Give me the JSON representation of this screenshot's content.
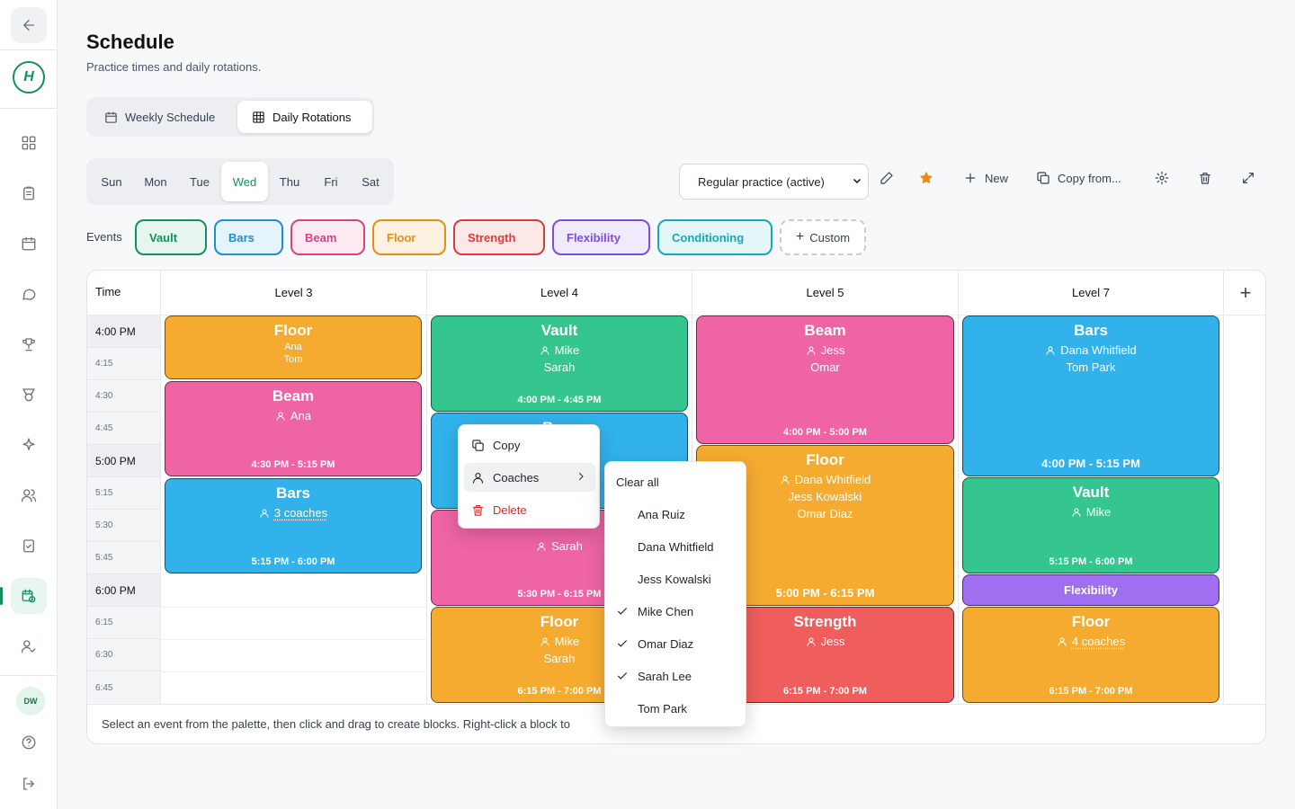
{
  "page": {
    "title": "Schedule",
    "subtitle": "Practice times and daily rotations."
  },
  "sidebar": {
    "avatar_initials": "DW",
    "logo_text": "H"
  },
  "view_tabs": [
    {
      "label": "Weekly Schedule",
      "icon": "calendar-icon",
      "active": false
    },
    {
      "label": "Daily Rotations",
      "icon": "grid-icon",
      "active": true
    }
  ],
  "days": [
    "Sun",
    "Mon",
    "Tue",
    "Wed",
    "Thu",
    "Fri",
    "Sat"
  ],
  "selected_day": "Wed",
  "toolbar": {
    "preset": "Regular practice (active)",
    "new_label": "New",
    "copy_label": "Copy from..."
  },
  "events": {
    "label": "Events",
    "palette": [
      {
        "label": "Vault",
        "color": "#12915e"
      },
      {
        "label": "Bars",
        "color": "#1e8fd1"
      },
      {
        "label": "Beam",
        "color": "#d9447f"
      },
      {
        "label": "Floor",
        "color": "#e58f15"
      },
      {
        "label": "Strength",
        "color": "#dc3b3b"
      },
      {
        "label": "Flexibility",
        "color": "#7c4ee0"
      },
      {
        "label": "Conditioning",
        "color": "#19a8b8"
      }
    ],
    "custom_label": "Custom"
  },
  "grid": {
    "time_header": "Time",
    "levels": [
      "Level 3",
      "Level 4",
      "Level 5",
      "Level 7"
    ],
    "times": [
      "4:00 PM",
      "4:15",
      "4:30",
      "4:45",
      "5:00 PM",
      "5:15",
      "5:30",
      "5:45",
      "6:00 PM",
      "6:15",
      "6:30",
      "6:45"
    ],
    "blocks": [
      {
        "level": "Level 3",
        "event": "Floor",
        "coaches": [
          "Ana",
          "Tom"
        ],
        "time": ""
      },
      {
        "level": "Level 3",
        "event": "Beam",
        "coaches": [
          "Ana"
        ],
        "time": "4:30 PM - 5:15 PM"
      },
      {
        "level": "Level 3",
        "event": "Bars",
        "coaches_summary": "3 coaches",
        "time": "5:15 PM - 6:00 PM"
      },
      {
        "level": "Level 4",
        "event": "Vault",
        "coaches": [
          "Mike",
          "Sarah"
        ],
        "time": "4:00 PM - 4:45 PM"
      },
      {
        "level": "Level 4",
        "event": "Bars",
        "coaches": [],
        "time": ""
      },
      {
        "level": "Level 4",
        "event": "Beam",
        "coaches": [
          "Sarah"
        ],
        "time": "5:30 PM - 6:15 PM"
      },
      {
        "level": "Level 4",
        "event": "Floor",
        "coaches": [
          "Mike",
          "Sarah"
        ],
        "time": "6:15 PM - 7:00 PM"
      },
      {
        "level": "Level 5",
        "event": "Beam",
        "coaches": [
          "Jess",
          "Omar"
        ],
        "time": "4:00 PM - 5:00 PM"
      },
      {
        "level": "Level 5",
        "event": "Floor",
        "coaches": [
          "Dana Whitfield",
          "Jess Kowalski",
          "Omar Diaz"
        ],
        "time": "5:00 PM - 6:15 PM"
      },
      {
        "level": "Level 5",
        "event": "Strength",
        "coaches": [
          "Jess"
        ],
        "time": "6:15 PM - 7:00 PM"
      },
      {
        "level": "Level 7",
        "event": "Bars",
        "coaches": [
          "Dana Whitfield",
          "Tom Park"
        ],
        "time": "4:00 PM - 5:15 PM"
      },
      {
        "level": "Level 7",
        "event": "Vault",
        "coaches": [
          "Mike"
        ],
        "time": "5:15 PM - 6:00 PM"
      },
      {
        "level": "Level 7",
        "event": "Flexibility",
        "coaches": [],
        "time": ""
      },
      {
        "level": "Level 7",
        "event": "Floor",
        "coaches_summary": "4 coaches",
        "time": "6:15 PM - 7:00 PM"
      }
    ],
    "footer": "Select an event from the palette, then click and drag to create blocks. Right-click a block to"
  },
  "context_menu": {
    "items": [
      "Copy",
      "Coaches",
      "Delete"
    ],
    "coaches_submenu": {
      "clear_label": "Clear all",
      "options": [
        {
          "name": "Ana Ruiz",
          "checked": false
        },
        {
          "name": "Dana Whitfield",
          "checked": false
        },
        {
          "name": "Jess Kowalski",
          "checked": false
        },
        {
          "name": "Mike Chen",
          "checked": true
        },
        {
          "name": "Omar Diaz",
          "checked": true
        },
        {
          "name": "Sarah Lee",
          "checked": true
        },
        {
          "name": "Tom Park",
          "checked": false
        }
      ]
    }
  }
}
